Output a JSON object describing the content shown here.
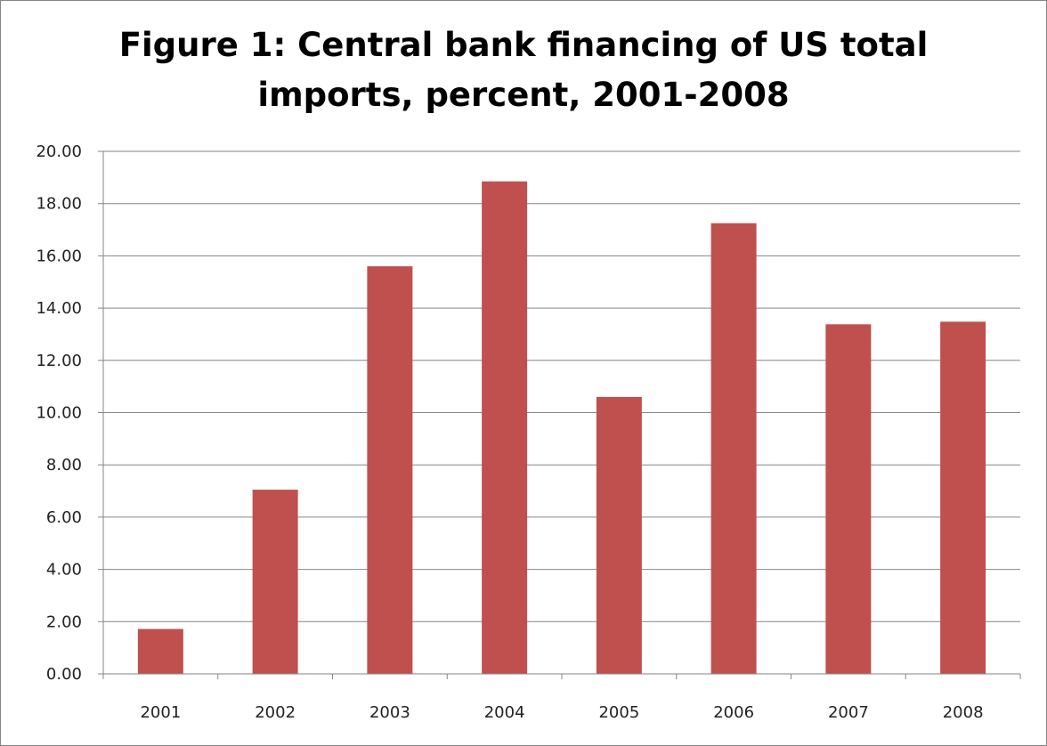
{
  "chart_data": {
    "type": "bar",
    "title_lines": [
      "Figure 1: Central bank financing  of US total",
      "imports, percent, 2001-2008"
    ],
    "categories": [
      "2001",
      "2002",
      "2003",
      "2004",
      "2005",
      "2006",
      "2007",
      "2008"
    ],
    "values": [
      1.72,
      7.05,
      15.6,
      18.85,
      10.6,
      17.25,
      13.38,
      13.48
    ],
    "ylim": [
      0,
      20
    ],
    "y_ticks": [
      "0.00",
      "2.00",
      "4.00",
      "6.00",
      "8.00",
      "10.00",
      "12.00",
      "14.00",
      "16.00",
      "18.00",
      "20.00"
    ],
    "grid": true,
    "legend": "none",
    "bar_color": "#c0504d",
    "grid_color": "#868686"
  }
}
